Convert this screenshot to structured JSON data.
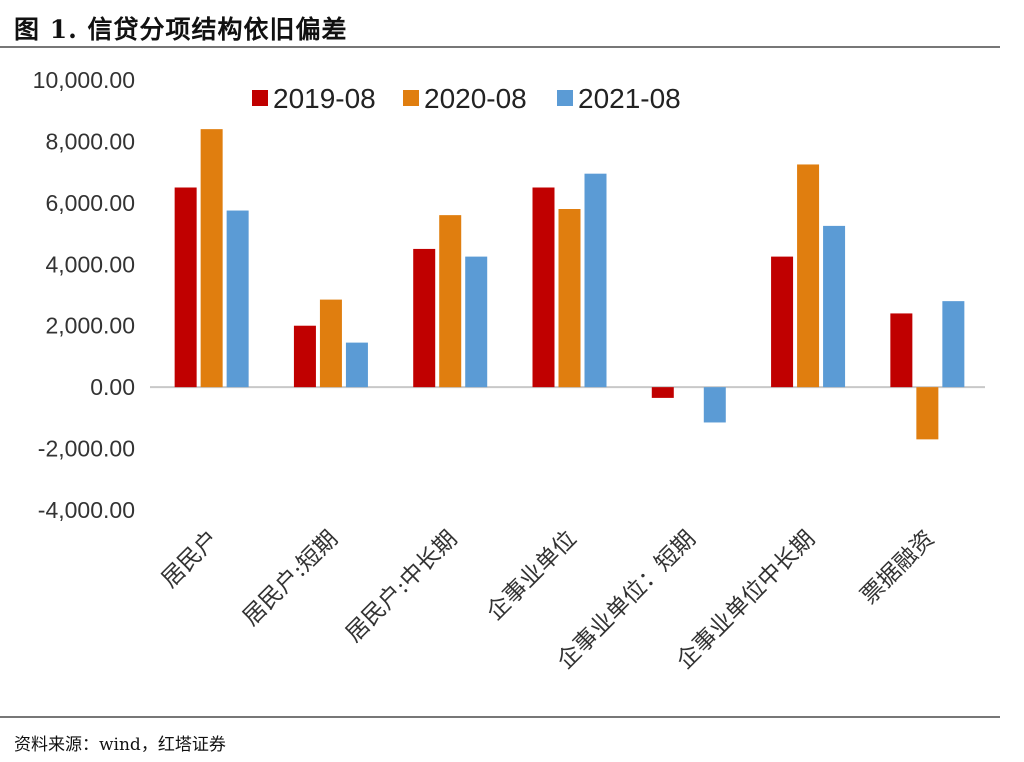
{
  "figure": {
    "title": "图 1. 信贷分项结构依旧偏差",
    "source": "资料来源：wind，红塔证券"
  },
  "chart_data": {
    "type": "bar",
    "categories": [
      "居民户",
      "居民户:短期",
      "居民户:中长期",
      "企事业单位",
      "企事业单位：短期",
      "企事业单位中长期",
      "票据融资"
    ],
    "series": [
      {
        "name": "2019-08",
        "color": "#C00000",
        "values": [
          6500,
          2000,
          4500,
          6500,
          -350,
          4250,
          2400
        ]
      },
      {
        "name": "2020-08",
        "color": "#E07E0F",
        "values": [
          8400,
          2850,
          5600,
          5800,
          0,
          7250,
          -1700
        ]
      },
      {
        "name": "2021-08",
        "color": "#5B9BD5",
        "values": [
          5750,
          1450,
          4250,
          6950,
          -1150,
          5250,
          2800
        ]
      }
    ],
    "ylim": [
      -4000,
      10000
    ],
    "yticks": [
      "10,000.00",
      "8,000.00",
      "6,000.00",
      "4,000.00",
      "2,000.00",
      "0.00",
      "-2,000.00",
      "-4,000.00"
    ],
    "legend_position": "top",
    "grid": false,
    "zero_line": true
  }
}
